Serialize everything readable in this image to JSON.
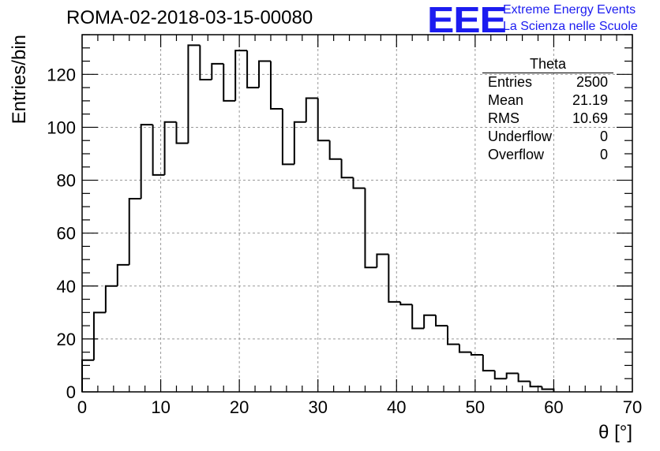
{
  "header": {
    "run_title": "ROMA-02-2018-03-15-00080",
    "logo_text": "EEE",
    "logo_line1": "Extreme Energy Events",
    "logo_line2": "La Scienza nelle Scuole"
  },
  "stats": {
    "title": "Theta",
    "rows": [
      {
        "label": "Entries",
        "value": "2500"
      },
      {
        "label": "Mean",
        "value": "21.19"
      },
      {
        "label": "RMS",
        "value": "10.69"
      },
      {
        "label": "Underflow",
        "value": "0"
      },
      {
        "label": "Overflow",
        "value": "0"
      }
    ]
  },
  "chart_data": {
    "type": "bar",
    "style": "step-histogram",
    "xlabel": "θ [°]",
    "ylabel": "Entries/bin",
    "xlim": [
      0,
      70
    ],
    "ylim": [
      0,
      135
    ],
    "bin_width": 1.5,
    "x_start": 0,
    "values": [
      12,
      30,
      40,
      48,
      73,
      101,
      82,
      102,
      94,
      131,
      118,
      124,
      110,
      129,
      115,
      125,
      107,
      86,
      102,
      111,
      95,
      88,
      81,
      77,
      47,
      52,
      34,
      33,
      24,
      29,
      25,
      18,
      15,
      14,
      8,
      5,
      7,
      4,
      2,
      1
    ],
    "x_ticks": [
      0,
      10,
      20,
      30,
      40,
      50,
      60,
      70
    ],
    "y_ticks": [
      0,
      20,
      40,
      60,
      80,
      100,
      120
    ],
    "grid": true,
    "line_color": "#000000",
    "grid_color": "#999999"
  }
}
